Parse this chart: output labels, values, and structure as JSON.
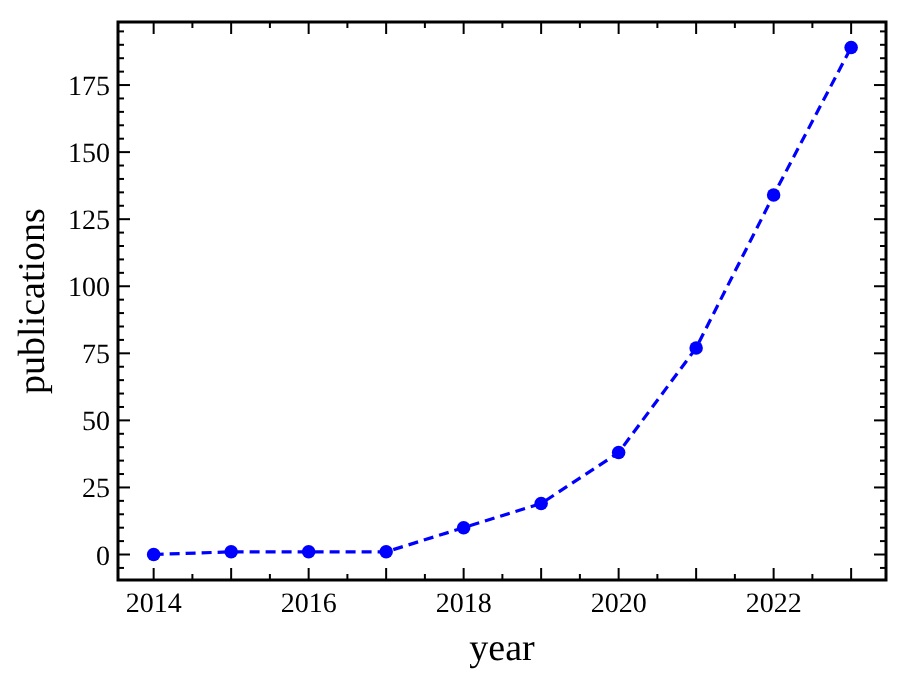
{
  "chart_data": {
    "type": "line",
    "xlabel": "year",
    "ylabel": "publications",
    "x": [
      2014,
      2015,
      2016,
      2017,
      2018,
      2019,
      2020,
      2021,
      2022,
      2023
    ],
    "series": [
      {
        "color": "#0000ff",
        "values": [
          0,
          1,
          1,
          1,
          10,
          19,
          38,
          77,
          134,
          189
        ]
      }
    ],
    "marker": "circle",
    "line_style": "dashed",
    "grid": false,
    "xlim": [
      2013.54,
      2023.45
    ],
    "ylim": [
      -9.5,
      198.5
    ],
    "xticks": [
      2014,
      {
        "value": 2014.5,
        "label": null
      },
      {
        "value": 2015,
        "label": null
      },
      {
        "value": 2015.5,
        "label": null
      },
      2016,
      {
        "value": 2016.5,
        "label": null
      },
      {
        "value": 2017,
        "label": null
      },
      {
        "value": 2017.5,
        "label": null
      },
      2018,
      {
        "value": 2018.5,
        "label": null
      },
      {
        "value": 2019,
        "label": null
      },
      {
        "value": 2019.5,
        "label": null
      },
      2020,
      {
        "value": 2020.5,
        "label": null
      },
      {
        "value": 2021,
        "label": null
      },
      {
        "value": 2021.5,
        "label": null
      },
      2022,
      {
        "value": 2022.5,
        "label": null
      },
      {
        "value": 2023,
        "label": null
      }
    ],
    "yticks": [
      {
        "value": -5,
        "label": null
      },
      0,
      {
        "value": 5,
        "label": null
      },
      {
        "value": 10,
        "label": null
      },
      {
        "value": 15,
        "label": null
      },
      {
        "value": 20,
        "label": null
      },
      25,
      {
        "value": 30,
        "label": null
      },
      {
        "value": 35,
        "label": null
      },
      {
        "value": 40,
        "label": null
      },
      {
        "value": 45,
        "label": null
      },
      50,
      {
        "value": 55,
        "label": null
      },
      {
        "value": 60,
        "label": null
      },
      {
        "value": 65,
        "label": null
      },
      {
        "value": 70,
        "label": null
      },
      75,
      {
        "value": 80,
        "label": null
      },
      {
        "value": 85,
        "label": null
      },
      {
        "value": 90,
        "label": null
      },
      {
        "value": 95,
        "label": null
      },
      100,
      {
        "value": 105,
        "label": null
      },
      {
        "value": 110,
        "label": null
      },
      {
        "value": 115,
        "label": null
      },
      {
        "value": 120,
        "label": null
      },
      125,
      {
        "value": 130,
        "label": null
      },
      {
        "value": 135,
        "label": null
      },
      {
        "value": 140,
        "label": null
      },
      {
        "value": 145,
        "label": null
      },
      150,
      {
        "value": 155,
        "label": null
      },
      {
        "value": 160,
        "label": null
      },
      {
        "value": 165,
        "label": null
      },
      {
        "value": 170,
        "label": null
      },
      175,
      {
        "value": 180,
        "label": null
      },
      {
        "value": 185,
        "label": null
      },
      {
        "value": 190,
        "label": null
      },
      {
        "value": 195,
        "label": null
      }
    ]
  }
}
